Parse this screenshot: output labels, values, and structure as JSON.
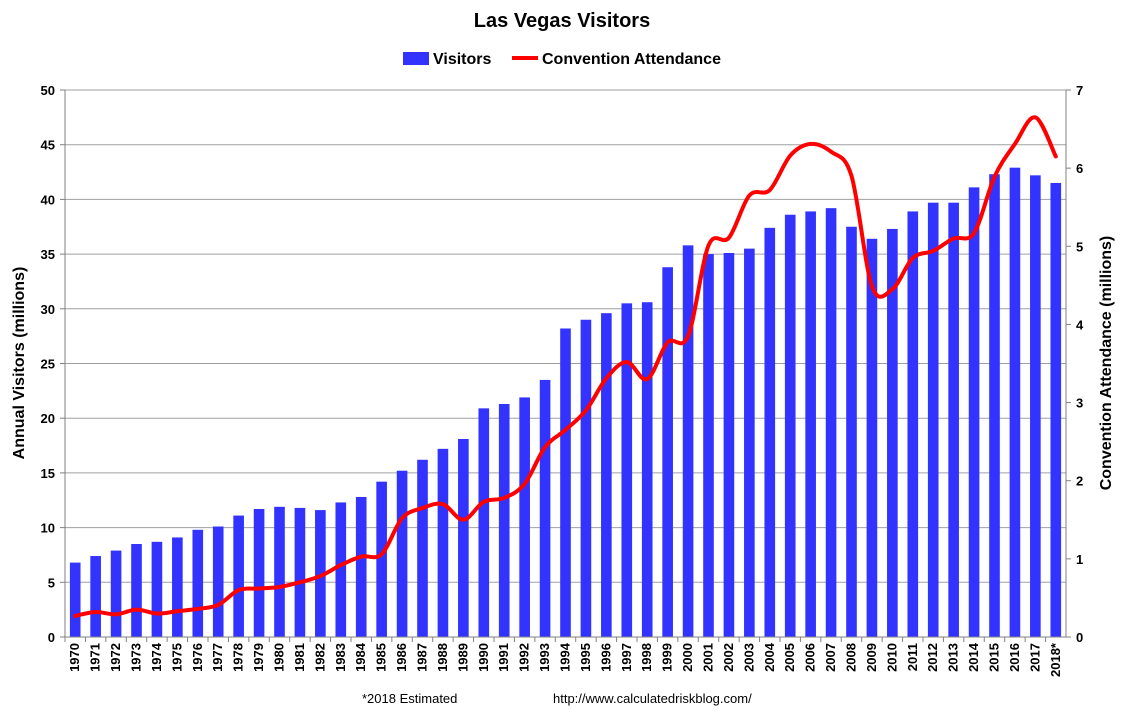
{
  "chart_data": {
    "type": "bar",
    "title": "Las Vegas Visitors",
    "categories": [
      "1970",
      "1971",
      "1972",
      "1973",
      "1974",
      "1975",
      "1976",
      "1977",
      "1978",
      "1979",
      "1980",
      "1981",
      "1982",
      "1983",
      "1984",
      "1985",
      "1986",
      "1987",
      "1988",
      "1989",
      "1990",
      "1991",
      "1992",
      "1993",
      "1994",
      "1995",
      "1996",
      "1997",
      "1998",
      "1999",
      "2000",
      "2001",
      "2002",
      "2003",
      "2004",
      "2005",
      "2006",
      "2007",
      "2008",
      "2009",
      "2010",
      "2011",
      "2012",
      "2013",
      "2014",
      "2015",
      "2016",
      "2017",
      "2018*"
    ],
    "series": [
      {
        "name": "Visitors",
        "type": "bar",
        "axis": "left",
        "color": "#3333ff",
        "values": [
          6.8,
          7.4,
          7.9,
          8.5,
          8.7,
          9.1,
          9.8,
          10.1,
          11.1,
          11.7,
          11.9,
          11.8,
          11.6,
          12.3,
          12.8,
          14.2,
          15.2,
          16.2,
          17.2,
          18.1,
          20.9,
          21.3,
          21.9,
          23.5,
          28.2,
          29.0,
          29.6,
          30.5,
          30.6,
          33.8,
          35.8,
          35.0,
          35.1,
          35.5,
          37.4,
          38.6,
          38.9,
          39.2,
          37.5,
          36.4,
          37.3,
          38.9,
          39.7,
          39.7,
          41.1,
          42.3,
          42.9,
          42.2,
          41.5
        ]
      },
      {
        "name": "Convention Attendance",
        "type": "line",
        "axis": "right",
        "color": "#ff0000",
        "values": [
          0.27,
          0.32,
          0.29,
          0.35,
          0.3,
          0.33,
          0.36,
          0.41,
          0.6,
          0.62,
          0.64,
          0.7,
          0.78,
          0.92,
          1.03,
          1.06,
          1.52,
          1.65,
          1.7,
          1.5,
          1.73,
          1.78,
          1.96,
          2.43,
          2.65,
          2.9,
          3.31,
          3.52,
          3.3,
          3.77,
          3.85,
          5.01,
          5.11,
          5.65,
          5.72,
          6.16,
          6.31,
          6.21,
          5.9,
          4.49,
          4.45,
          4.85,
          4.94,
          5.1,
          5.17,
          5.89,
          6.31,
          6.65,
          6.15
        ]
      }
    ],
    "ylabel": "Annual Visitors (millions)",
    "ylim": [
      0,
      50
    ],
    "yticks": [
      0,
      5,
      10,
      15,
      20,
      25,
      30,
      35,
      40,
      45,
      50
    ],
    "y2label": "Convention Attendance (millions)",
    "y2lim": [
      0,
      7
    ],
    "y2ticks": [
      0,
      1,
      2,
      3,
      4,
      5,
      6,
      7
    ],
    "grid": true,
    "legend_position": "top-center"
  },
  "footer": {
    "note": "*2018 Estimated",
    "url": "http://www.calculatedriskblog.com/"
  }
}
